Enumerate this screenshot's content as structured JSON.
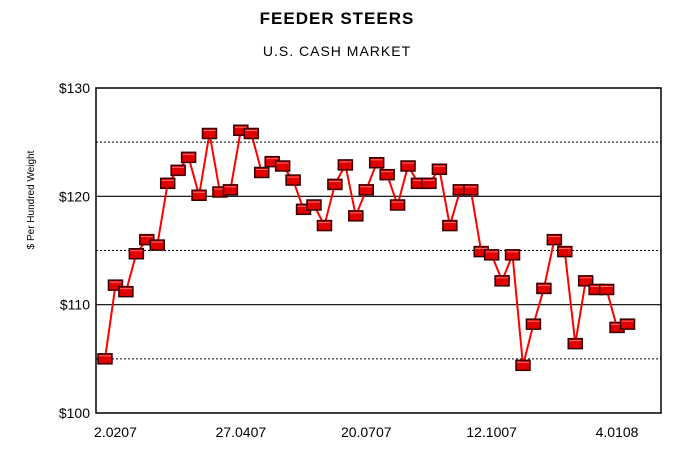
{
  "chart_data": {
    "type": "line",
    "title": "FEEDER STEERS",
    "subtitle": "U.S. CASH MARKET",
    "ylabel": "$ Per Hundred Weight",
    "xlabel": "",
    "ylim": [
      100,
      130
    ],
    "yticks": [
      100,
      110,
      120,
      130
    ],
    "ytick_labels": [
      "$100",
      "$110",
      "$120",
      "$130"
    ],
    "minor_gridlines": [
      105,
      115,
      125
    ],
    "grid": true,
    "xtick_labels": [
      "2.0207",
      "27.0407",
      "20.0707",
      "12.1007",
      "4.0108"
    ],
    "xtick_positions": [
      1,
      13,
      25,
      37,
      49
    ],
    "line_color": "#ff0000",
    "marker_color": "#e00000",
    "series": [
      {
        "values": [
          105.0,
          111.8,
          111.2,
          114.7,
          116.0,
          115.5,
          121.2,
          122.4,
          123.6,
          120.1,
          125.8,
          120.4,
          120.6,
          126.1,
          125.8,
          122.2,
          123.2,
          122.8,
          121.5,
          118.8,
          119.2,
          117.3,
          121.1,
          122.9,
          118.2,
          120.6,
          123.1,
          122.0,
          119.2,
          122.8,
          121.2,
          121.2,
          122.5,
          117.3,
          120.6,
          120.6,
          114.9,
          114.6,
          112.2,
          114.6,
          104.4,
          108.2,
          111.5,
          116.0,
          114.9,
          106.4,
          112.2,
          111.4,
          111.4,
          107.9,
          108.2
        ]
      }
    ]
  }
}
